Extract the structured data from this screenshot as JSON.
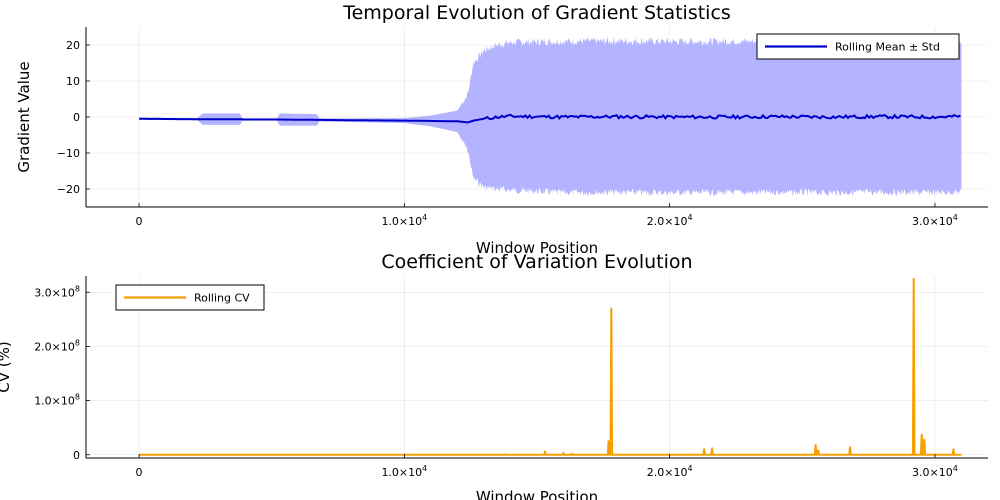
{
  "chart_data": [
    {
      "type": "line",
      "title": "Temporal Evolution of Gradient Statistics",
      "xlabel": "Window Position",
      "ylabel": "Gradient Value",
      "xlim": [
        -2000,
        32000
      ],
      "ylim": [
        -25,
        25
      ],
      "xticks": [
        0,
        10000,
        20000,
        30000
      ],
      "xtick_labels": [
        {
          "mant": "0",
          "exp": ""
        },
        {
          "mant": "1.0×10",
          "exp": "4"
        },
        {
          "mant": "2.0×10",
          "exp": "4"
        },
        {
          "mant": "3.0×10",
          "exp": "4"
        }
      ],
      "yticks": [
        -20,
        -10,
        0,
        10,
        20
      ],
      "ytick_labels": [
        "−20",
        "−10",
        "0",
        "10",
        "20"
      ],
      "grid": true,
      "legend": {
        "placement": "top-right",
        "entries": [
          "Rolling Mean ± Std"
        ]
      },
      "series": [
        {
          "name": "Rolling Mean ± Std",
          "color": "#0000cc",
          "band_color": "#b3b3ff",
          "x": [
            0,
            2000,
            2200,
            2400,
            3800,
            3900,
            5200,
            5300,
            6700,
            6800,
            8000,
            10000,
            11000,
            12000,
            12400,
            12600,
            13000,
            13500,
            14000,
            16000,
            18000,
            20000,
            22000,
            24000,
            26000,
            28000,
            30000,
            31000
          ],
          "mean": [
            -0.5,
            -0.6,
            -0.6,
            -0.6,
            -0.6,
            -0.7,
            -0.7,
            -0.7,
            -0.8,
            -0.8,
            -0.9,
            -1.0,
            -1.1,
            -1.2,
            -1.5,
            -1.0,
            -0.5,
            0.0,
            0.2,
            0.0,
            0.1,
            0.0,
            0.0,
            0.1,
            0.0,
            0.1,
            0.0,
            0.2
          ],
          "std": [
            0.3,
            0.3,
            0.3,
            1.6,
            1.6,
            0.3,
            0.3,
            1.7,
            1.6,
            0.4,
            0.5,
            0.7,
            1.5,
            3.0,
            8,
            16,
            19,
            20,
            20.5,
            21,
            21,
            21,
            21,
            21,
            21,
            21,
            21,
            21
          ]
        }
      ]
    },
    {
      "type": "line",
      "title": "Coefficient of Variation Evolution",
      "xlabel": "Window Position",
      "ylabel": "CV (%)",
      "xlim": [
        -2000,
        32000
      ],
      "ylim": [
        -6000000,
        330000000
      ],
      "xticks": [
        0,
        10000,
        20000,
        30000
      ],
      "xtick_labels": [
        {
          "mant": "0",
          "exp": ""
        },
        {
          "mant": "1.0×10",
          "exp": "4"
        },
        {
          "mant": "2.0×10",
          "exp": "4"
        },
        {
          "mant": "3.0×10",
          "exp": "4"
        }
      ],
      "yticks": [
        0,
        100000000,
        200000000,
        300000000
      ],
      "ytick_labels": [
        {
          "mant": "0",
          "exp": ""
        },
        {
          "mant": "1.0×10",
          "exp": "8"
        },
        {
          "mant": "2.0×10",
          "exp": "8"
        },
        {
          "mant": "3.0×10",
          "exp": "8"
        }
      ],
      "grid": true,
      "legend": {
        "placement": "top-left",
        "entries": [
          "Rolling CV"
        ]
      },
      "series": [
        {
          "name": "Rolling CV",
          "color": "#f5a000",
          "spikes": [
            [
              13800,
              1000000
            ],
            [
              15300,
              6000000
            ],
            [
              16000,
              3000000
            ],
            [
              16300,
              2000000
            ],
            [
              17700,
              25000000
            ],
            [
              17800,
              270000000
            ],
            [
              21300,
              10000000
            ],
            [
              21600,
              12000000
            ],
            [
              25500,
              18000000
            ],
            [
              25600,
              8000000
            ],
            [
              26800,
              14000000
            ],
            [
              29200,
              325000000
            ],
            [
              29500,
              37000000
            ],
            [
              29600,
              28000000
            ],
            [
              30700,
              10000000
            ]
          ],
          "end_x": 31000
        }
      ]
    }
  ]
}
